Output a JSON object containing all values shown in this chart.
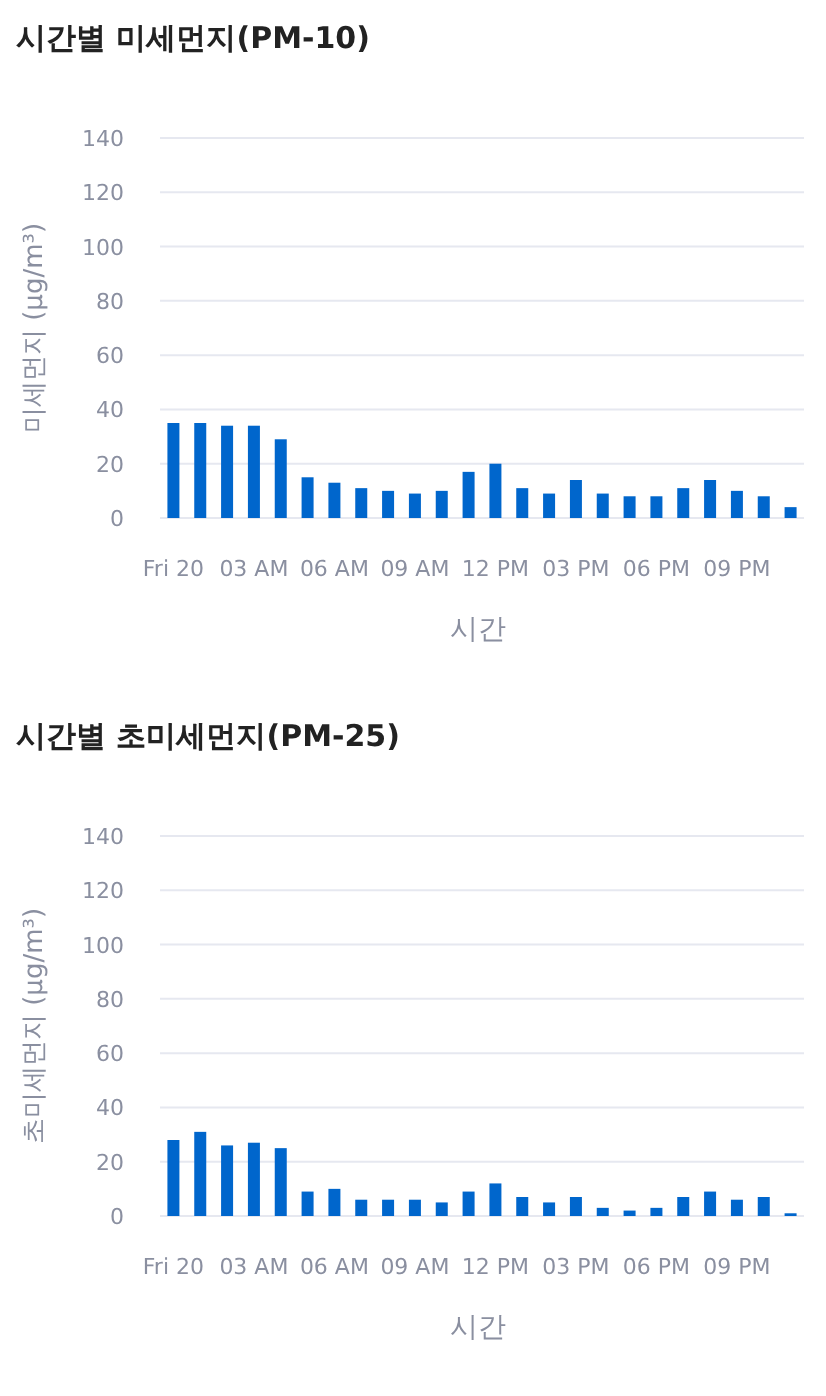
{
  "chart_data": [
    {
      "type": "bar",
      "title": "시간별 미세먼지(PM-10)",
      "xlabel": "시간",
      "ylabel": "미세먼지 (μg/m³)",
      "categories": [
        "Fri 20",
        null,
        null,
        "03 AM",
        null,
        null,
        "06 AM",
        null,
        null,
        "09 AM",
        null,
        null,
        "12 PM",
        null,
        null,
        "03 PM",
        null,
        null,
        "06 PM",
        null,
        null,
        "09 PM",
        null,
        null
      ],
      "values": [
        35,
        35,
        34,
        34,
        29,
        15,
        13,
        11,
        10,
        9,
        10,
        17,
        20,
        11,
        9,
        14,
        9,
        8,
        8,
        11,
        14,
        10,
        8,
        4
      ],
      "color": "#0066cc",
      "ylim": [
        0,
        140
      ],
      "yticks": [
        0,
        20,
        40,
        60,
        80,
        100,
        120,
        140
      ],
      "grid": "y"
    },
    {
      "type": "bar",
      "title": "시간별 초미세먼지(PM-25)",
      "xlabel": "시간",
      "ylabel": "초미세먼지 (μg/m³)",
      "categories": [
        "Fri 20",
        null,
        null,
        "03 AM",
        null,
        null,
        "06 AM",
        null,
        null,
        "09 AM",
        null,
        null,
        "12 PM",
        null,
        null,
        "03 PM",
        null,
        null,
        "06 PM",
        null,
        null,
        "09 PM",
        null,
        null
      ],
      "values": [
        28,
        31,
        26,
        27,
        25,
        9,
        10,
        6,
        6,
        6,
        5,
        9,
        12,
        7,
        5,
        7,
        3,
        2,
        3,
        7,
        9,
        6,
        7,
        1
      ],
      "color": "#0066cc",
      "ylim": [
        0,
        140
      ],
      "yticks": [
        0,
        20,
        40,
        60,
        80,
        100,
        120,
        140
      ],
      "grid": "y"
    }
  ]
}
